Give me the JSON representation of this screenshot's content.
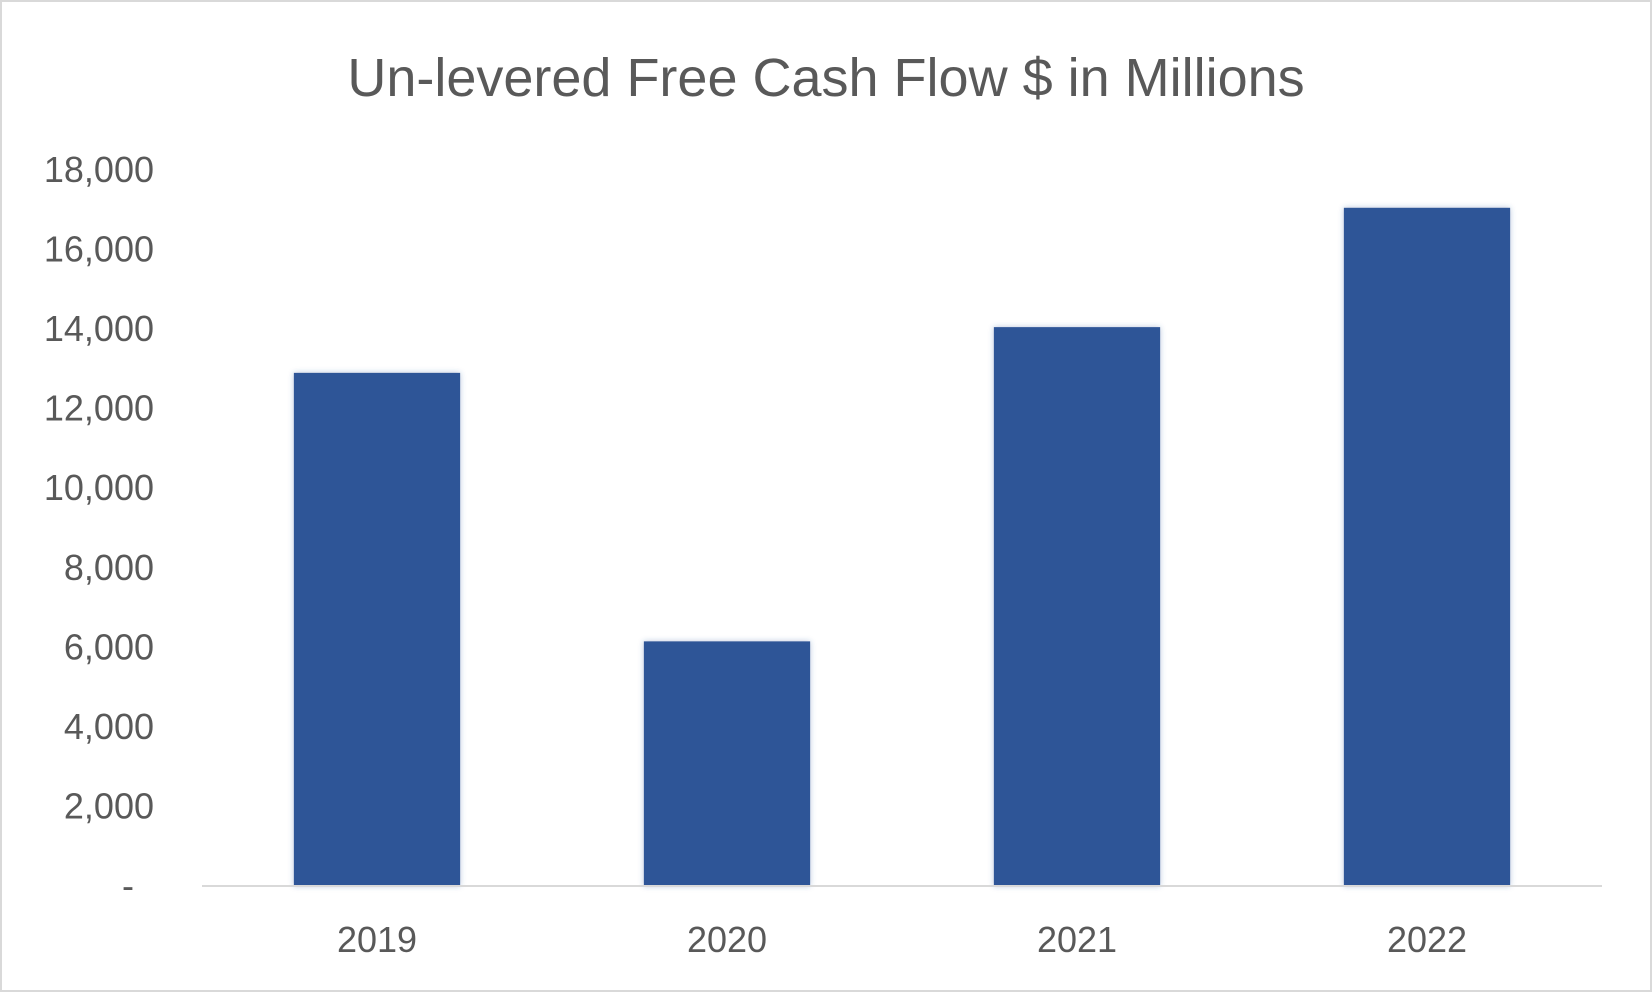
{
  "chart_data": {
    "type": "bar",
    "title": "Un-levered Free Cash Flow $ in Millions",
    "xlabel": "",
    "ylabel": "",
    "categories": [
      "2019",
      "2020",
      "2021",
      "2022"
    ],
    "series": [
      {
        "values": [
          12900,
          6150,
          14050,
          17050
        ],
        "color": "#2F5597"
      }
    ],
    "ylim": [
      0,
      18000
    ],
    "yticks": [
      0,
      2000,
      4000,
      6000,
      8000,
      10000,
      12000,
      14000,
      16000,
      18000
    ],
    "ytick_labels": [
      "-",
      "2,000",
      "4,000",
      "6,000",
      "8,000",
      "10,000",
      "12,000",
      "14,000",
      "16,000",
      "18,000"
    ],
    "grid": false,
    "legend": "none",
    "axis_color": "#d9d9d9",
    "text_color": "#595959"
  }
}
